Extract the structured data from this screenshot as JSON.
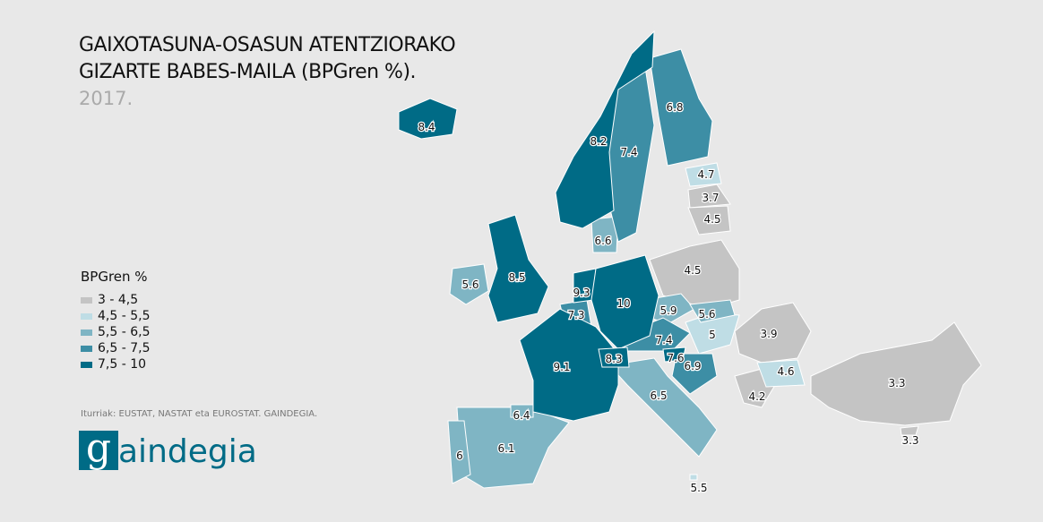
{
  "title": {
    "line1": "GAIXOTASUNA-OSASUN ATENTZIORAKO",
    "line2": "GIZARTE BABES-MAILA (BPGren %).",
    "year": "2017."
  },
  "legend": {
    "title": "BPGren %",
    "items": [
      {
        "label": "3 - 4,5",
        "color": "#c4c4c4"
      },
      {
        "label": "4,5 - 5,5",
        "color": "#bfdde5"
      },
      {
        "label": "5,5 - 6,5",
        "color": "#7fb5c4"
      },
      {
        "label": "6,5 - 7,5",
        "color": "#3d8ea5"
      },
      {
        "label": "7,5 - 10",
        "color": "#006b86"
      }
    ]
  },
  "source": "Iturriak: EUSTAT, NASTAT eta EUROSTAT. GAINDEGIA.",
  "logo": "gaindegia",
  "map": {
    "regions": [
      {
        "id": "iceland",
        "value": "8.4"
      },
      {
        "id": "norway",
        "value": "8.2"
      },
      {
        "id": "sweden",
        "value": "7.4"
      },
      {
        "id": "finland",
        "value": "6.8"
      },
      {
        "id": "estonia",
        "value": "4.7"
      },
      {
        "id": "latvia",
        "value": "3.7"
      },
      {
        "id": "lithuania",
        "value": "4.5"
      },
      {
        "id": "denmark",
        "value": "6.6"
      },
      {
        "id": "uk",
        "value": "8.5"
      },
      {
        "id": "ireland",
        "value": "5.6"
      },
      {
        "id": "netherlands",
        "value": "9.3"
      },
      {
        "id": "belgium",
        "value": "7.3"
      },
      {
        "id": "germany",
        "value": "10"
      },
      {
        "id": "poland",
        "value": "4.5"
      },
      {
        "id": "czechia",
        "value": "5.9"
      },
      {
        "id": "slovakia",
        "value": "5.6"
      },
      {
        "id": "hungary",
        "value": "5"
      },
      {
        "id": "romania",
        "value": "3.9"
      },
      {
        "id": "bulgaria",
        "value": "4.6"
      },
      {
        "id": "greece",
        "value": "4.2"
      },
      {
        "id": "turkey",
        "value": "3.3"
      },
      {
        "id": "cyprus",
        "value": "3.3"
      },
      {
        "id": "austria",
        "value": "7.4"
      },
      {
        "id": "slovenia",
        "value": "7.6"
      },
      {
        "id": "croatia",
        "value": "6.9"
      },
      {
        "id": "switzerland",
        "value": "8.3"
      },
      {
        "id": "france",
        "value": "9.1"
      },
      {
        "id": "italy",
        "value": "6.5"
      },
      {
        "id": "spain",
        "value": "6.1"
      },
      {
        "id": "portugal",
        "value": "6"
      },
      {
        "id": "basque-country",
        "value": "6.4"
      },
      {
        "id": "malta",
        "value": "5.5"
      }
    ]
  }
}
